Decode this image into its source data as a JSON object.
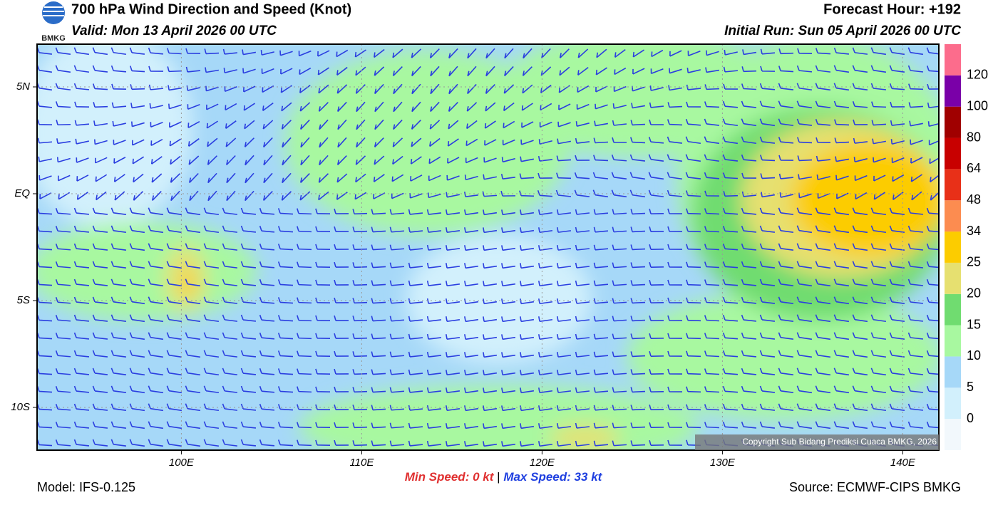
{
  "header": {
    "logo_text": "BMKG",
    "title": "700 hPa Wind Direction and Speed (Knot)",
    "valid": "Valid: Mon 13 April 2026 00 UTC",
    "forecast_hour": "Forecast Hour: +192",
    "initial_run": "Initial Run: Sun 05 April 2026 00 UTC"
  },
  "map": {
    "xlim": [
      92,
      142
    ],
    "ylim": [
      -12,
      7
    ],
    "xticks": [
      {
        "value": 100,
        "label": "100E"
      },
      {
        "value": 110,
        "label": "110E"
      },
      {
        "value": 120,
        "label": "120E"
      },
      {
        "value": 130,
        "label": "130E"
      },
      {
        "value": 140,
        "label": "140E"
      }
    ],
    "yticks": [
      {
        "value": 5,
        "label": "5N"
      },
      {
        "value": 0,
        "label": "EQ"
      },
      {
        "value": -5,
        "label": "5S"
      },
      {
        "value": -10,
        "label": "10S"
      }
    ],
    "copyright": "Copyright Sub Bidang Prediksi Cuaca BMKG, 2026"
  },
  "colorbar": {
    "levels": [
      0,
      5,
      10,
      15,
      20,
      25,
      34,
      48,
      64,
      80,
      100,
      120
    ],
    "colors": [
      "#f2f8fc",
      "#d2f0fc",
      "#a6d8f8",
      "#a8f8a0",
      "#70dc70",
      "#e6e070",
      "#fccc00",
      "#fc8c50",
      "#e83018",
      "#c80000",
      "#a00000",
      "#7a00a8",
      "#fc6c8c"
    ]
  },
  "stats": {
    "min_label": "Min Speed:",
    "min_value": 0,
    "min_unit": "kt",
    "separator": "|",
    "max_label": "Max Speed:",
    "max_value": 33,
    "max_unit": "kt"
  },
  "footer": {
    "model": "Model: IFS-0.125",
    "source": "Source: ECMWF-CIPS BMKG"
  }
}
